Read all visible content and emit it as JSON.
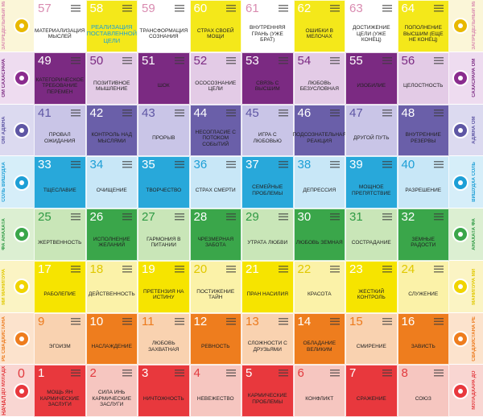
{
  "start": {
    "number": 0,
    "label": "НАЧАЛО"
  },
  "rows": [
    {
      "left": "ЗАПРЕДЕЛЬНЫЙ МИР",
      "right": "ЗАПРЕДЕЛЬНЫЙ МИР",
      "accent": "#d98bb0",
      "icon": "#e8b800",
      "side": "#fbf6d8",
      "cells": [
        {
          "number": 57,
          "text": "МАТЕРИАЛИЗАЦИЯ МЫСЛЕЙ",
          "color": "#ffffff"
        },
        {
          "number": 58,
          "text": "РЕАЛИЗАЦИЯ ПОСТАВЛЕННОЙ ЦЕЛИ",
          "color": "#f4e81a"
        },
        {
          "number": 59,
          "text": "ТРАНСФОРМАЦИЯ СОЗНАНИЯ",
          "color": "#ffffff"
        },
        {
          "number": 60,
          "text": "СТРАХ СВОЕЙ МОЩИ",
          "color": "#f4e81a"
        },
        {
          "number": 61,
          "text": "ВНУТРЕННЯЯ ГРАНЬ (УЖЕ БРАТ)",
          "color": "#ffffff"
        },
        {
          "number": 62,
          "text": "ОШИБКИ В МЕЛОЧАХ",
          "color": "#f4e81a"
        },
        {
          "number": 63,
          "text": "ДОСТИЖЕНИЕ ЦЕЛИ (УЖЕ КОНЕЦ)",
          "color": "#ffffff"
        },
        {
          "number": 64,
          "text": "ПОПОЛНЕНИЕ ВЫСШИМ (ЕЩЕ НЕ КОНЕЦ)",
          "color": "#f4e81a"
        }
      ]
    },
    {
      "left": "ОМ САХАСРАРА",
      "right": "САХАСРАРА ОМ",
      "accent": "#7b2a82",
      "icon": "#8a2c8e",
      "side": "#eedcf0",
      "cells": [
        {
          "number": 49,
          "text": "КАТЕГОРИЧЕСКОЕ ТРЕБОВАНИЕ ПЕРЕМЕН",
          "color": "#7b2a82"
        },
        {
          "number": 50,
          "text": "ПОЗИТИВНОЕ МЫШЛЕНИЕ",
          "color": "#e3cbe6"
        },
        {
          "number": 51,
          "text": "ШОК",
          "color": "#7b2a82"
        },
        {
          "number": 52,
          "text": "ОСОСОЗНАНИЕ ЦЕЛИ",
          "color": "#e3cbe6"
        },
        {
          "number": 53,
          "text": "СВЯЗЬ С ВЫСШИМ",
          "color": "#7b2a82"
        },
        {
          "number": 54,
          "text": "ЛЮБОВЬ БЕЗУСЛОВНАЯ",
          "color": "#e3cbe6"
        },
        {
          "number": 55,
          "text": "ИЗОБИЛИЕ",
          "color": "#7b2a82"
        },
        {
          "number": 56,
          "text": "ЦЕЛОСТНОСТЬ",
          "color": "#e3cbe6"
        }
      ]
    },
    {
      "left": "ОМ АДЖНА",
      "right": "АДЖНА ОМ",
      "accent": "#5e56a4",
      "icon": "#5e56a4",
      "side": "#dcdaf0",
      "cells": [
        {
          "number": 41,
          "text": "ПРОВАЛ ОЖИДАНИЯ",
          "color": "#c9c5e7"
        },
        {
          "number": 42,
          "text": "КОНТРОЛЬ НАД МЫСЛЯМИ",
          "color": "#6a5fa9"
        },
        {
          "number": 43,
          "text": "ПРОРЫВ",
          "color": "#c9c5e7"
        },
        {
          "number": 44,
          "text": "НЕСОГЛАСИЕ С ПОТОКОМ СОБЫТИЙ",
          "color": "#6a5fa9"
        },
        {
          "number": 45,
          "text": "ИГРА С ЛЮБОВЬЮ",
          "color": "#c9c5e7"
        },
        {
          "number": 46,
          "text": "ПОДСОЗНАТЕЛЬНАЯ РЕАКЦИЯ",
          "color": "#6a5fa9"
        },
        {
          "number": 47,
          "text": "ДРУГОЙ ПУТЬ",
          "color": "#c9c5e7"
        },
        {
          "number": 48,
          "text": "ВНУТРЕННИЕ РЕЗЕРВЫ",
          "color": "#6a5fa9"
        }
      ]
    },
    {
      "left": "СОЛЬ ВИШУДХА",
      "right": "ВИШУДХА СОЛЬ",
      "accent": "#1d9fd6",
      "icon": "#1d9fd6",
      "side": "#d6eef9",
      "cells": [
        {
          "number": 33,
          "text": "ТЩЕСЛАВИЕ",
          "color": "#28a8da"
        },
        {
          "number": 34,
          "text": "ОЧИЩЕНИЕ",
          "color": "#c8e7f7"
        },
        {
          "number": 35,
          "text": "ТВОРЧЕСТВО",
          "color": "#28a8da"
        },
        {
          "number": 36,
          "text": "СТРАХ СМЕРТИ",
          "color": "#c8e7f7"
        },
        {
          "number": 37,
          "text": "СЕМЕЙНЫЕ ПРОБЛЕМЫ",
          "color": "#28a8da"
        },
        {
          "number": 38,
          "text": "ДЕПРЕССИЯ",
          "color": "#c8e7f7"
        },
        {
          "number": 39,
          "text": "МОЩНОЕ ПРЕПЯТСТВИЕ",
          "color": "#28a8da"
        },
        {
          "number": 40,
          "text": "РАЗРЕШЕНИЕ",
          "color": "#c8e7f7"
        }
      ]
    },
    {
      "left": "ФА АНАХАТА",
      "right": "АНАХАТА ФА",
      "accent": "#2f9a44",
      "icon": "#3aa64a",
      "side": "#dcefd2",
      "cells": [
        {
          "number": 25,
          "text": "ЖЕРТВЕННОСТЬ",
          "color": "#c9e6b8"
        },
        {
          "number": 26,
          "text": "ИСПОЛНЕНИЕ ЖЕЛАНИЙ",
          "color": "#3aa64a"
        },
        {
          "number": 27,
          "text": "ГАРМОНИЯ В ПИТАНИИ",
          "color": "#c9e6b8"
        },
        {
          "number": 28,
          "text": "ЧРЕЗМЕРНАЯ ЗАБОТА",
          "color": "#3aa64a"
        },
        {
          "number": 29,
          "text": "УТРАТА ЛЮБВИ",
          "color": "#c9e6b8"
        },
        {
          "number": 30,
          "text": "ЛЮБОВЬ ЗЕМНАЯ",
          "color": "#3aa64a"
        },
        {
          "number": 31,
          "text": "СОСТРАДАНИЕ",
          "color": "#c9e6b8"
        },
        {
          "number": 32,
          "text": "ЗЕМНЫЕ РАДОСТИ",
          "color": "#3aa64a"
        }
      ]
    },
    {
      "left": "МИ МАНИПУРА",
      "right": "МАНИПУРА МИ",
      "accent": "#e0c800",
      "icon": "#f0d400",
      "side": "#fbf4c4",
      "cells": [
        {
          "number": 17,
          "text": "РАБОЛЕПИЕ",
          "color": "#f6e400"
        },
        {
          "number": 18,
          "text": "ДЕЙСТВЕННОСТЬ",
          "color": "#fbf2a8"
        },
        {
          "number": 19,
          "text": "ПРЕТЕНЗИЯ НА ИСТИНУ",
          "color": "#f6e400"
        },
        {
          "number": 20,
          "text": "ПОСТИЖЕНИЕ ТАЙН",
          "color": "#fbf2a8"
        },
        {
          "number": 21,
          "text": "ПРАН НАСИЛИЯ",
          "color": "#f6e400"
        },
        {
          "number": 22,
          "text": "КРАСОТА",
          "color": "#fbf2a8"
        },
        {
          "number": 23,
          "text": "ЖЕСТКИЙ КОНТРОЛЬ",
          "color": "#f6e400"
        },
        {
          "number": 24,
          "text": "СЛУЖЕНИЕ",
          "color": "#fbf2a8"
        }
      ]
    },
    {
      "left": "РЕ СВАДХИСТАНА",
      "right": "СВАДХИСТАНА РЕ",
      "accent": "#ec7a1c",
      "icon": "#ee7d1e",
      "side": "#fce3cd",
      "cells": [
        {
          "number": 9,
          "text": "ЭГОИЗМ",
          "color": "#f9d2b0"
        },
        {
          "number": 10,
          "text": "НАСЛАЖДЕНИЕ",
          "color": "#ee7d1e"
        },
        {
          "number": 11,
          "text": "ЛЮБОВЬ ЗАХВАТНАЯ",
          "color": "#f9d2b0"
        },
        {
          "number": 12,
          "text": "РЕВНОСТЬ",
          "color": "#ee7d1e"
        },
        {
          "number": 13,
          "text": "СЛОЖНОСТИ С ДРУЗЬЯМИ",
          "color": "#f9d2b0"
        },
        {
          "number": 14,
          "text": "ОБЛАДАНИЕ ВЕЛИКИМ",
          "color": "#ee7d1e"
        },
        {
          "number": 15,
          "text": "СМИРЕНИЕ",
          "color": "#f9d2b0"
        },
        {
          "number": 16,
          "text": "ЗАВИСТЬ",
          "color": "#ee7d1e"
        }
      ]
    },
    {
      "left": "ДО МУЛАДХАРА",
      "right": "МУЛАДХАРА ДО",
      "accent": "#e23a3e",
      "icon": "#e8383d",
      "side": "#f9d6d2",
      "cells": [
        {
          "number": 1,
          "text": "МОЩЬ ЯН КАРМИЧЕСКИЕ ЗАСЛУГИ",
          "color": "#e8383d"
        },
        {
          "number": 2,
          "text": "СИЛА ИНЬ КАРМИЧЕСКИЕ ЗАСЛУГИ",
          "color": "#f6c6c0"
        },
        {
          "number": 3,
          "text": "НИЧТОЖНОСТЬ",
          "color": "#e8383d"
        },
        {
          "number": 4,
          "text": "НЕВЕЖЕСТВО",
          "color": "#f6c6c0"
        },
        {
          "number": 5,
          "text": "КАРМИЧЕСКИЕ ПРОБЛЕМЫ",
          "color": "#e8383d"
        },
        {
          "number": 6,
          "text": "КОНФЛИКТ",
          "color": "#f6c6c0"
        },
        {
          "number": 7,
          "text": "СРАЖЕНИЕ",
          "color": "#e8383d"
        },
        {
          "number": 8,
          "text": "СОЮЗ",
          "color": "#f6c6c0"
        }
      ]
    }
  ]
}
